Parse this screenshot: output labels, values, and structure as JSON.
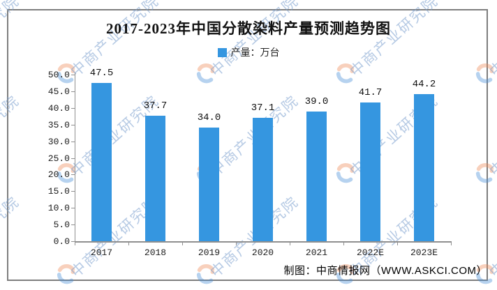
{
  "chart_data": {
    "type": "bar",
    "title": "2017-2023年中国分散染料产量预测趋势图",
    "legend": "产量：万台",
    "legend_position": "top",
    "categories": [
      "2017",
      "2018",
      "2019",
      "2020",
      "2021",
      "2022E",
      "2023E"
    ],
    "values": [
      47.5,
      37.7,
      34.0,
      37.1,
      39.0,
      41.7,
      44.2
    ],
    "value_labels": [
      "47.5",
      "37.7",
      "34.0",
      "37.1",
      "39.0",
      "41.7",
      "44.2"
    ],
    "xlabel": "",
    "ylabel": "",
    "ylim": [
      0,
      50
    ],
    "ytick_step": 5,
    "ytick_labels": [
      "0.0",
      "5.0",
      "10.0",
      "15.0",
      "20.0",
      "25.0",
      "30.0",
      "35.0",
      "40.0",
      "45.0",
      "50.0"
    ],
    "grid": false,
    "bar_color": "#3596E0",
    "axis_color": "#8f8f8f",
    "credit": "制图：中商情报网（WWW.ASKCI.COM）",
    "watermark_text": "中商产业研究院",
    "watermark_logo": "swirl-logo-icon",
    "watermark_colors": {
      "text": "rgba(122,158,205,0.55)",
      "orange": "#F08C5A",
      "blue": "#4A90D9"
    }
  }
}
